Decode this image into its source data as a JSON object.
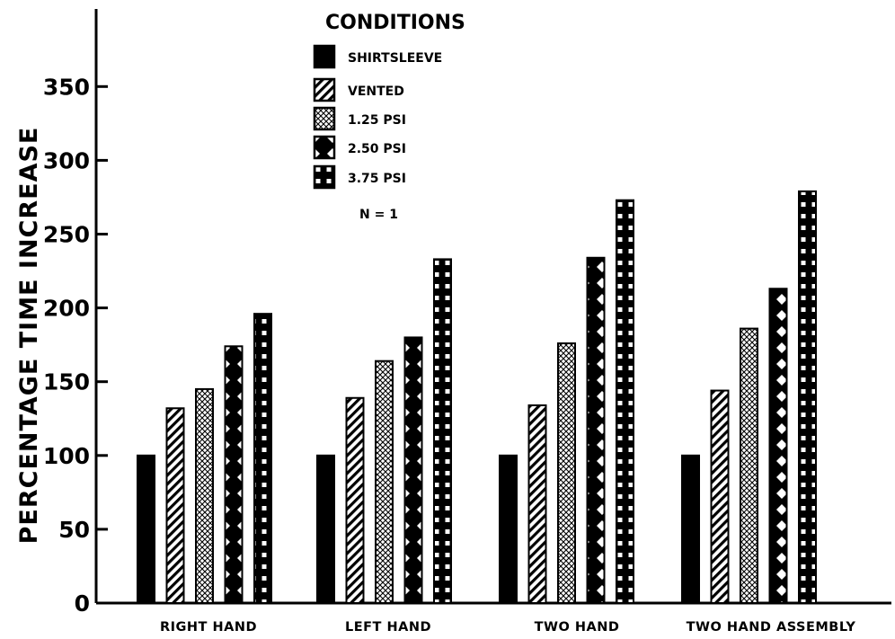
{
  "chart_data": {
    "type": "bar",
    "title": "",
    "xlabel": "",
    "ylabel": "PERCENTAGE TIME INCREASE",
    "ylim": [
      0,
      400
    ],
    "yticks": [
      0,
      50,
      100,
      150,
      200,
      250,
      300,
      350
    ],
    "ytick_labels": [
      "0",
      "50",
      "100",
      "150",
      "200",
      "250",
      "300",
      "350"
    ],
    "categories": [
      "RIGHT HAND",
      "LEFT HAND",
      "TWO HAND",
      "TWO HAND ASSEMBLY"
    ],
    "legend": {
      "title": "CONDITIONS",
      "note": "N = 1",
      "placement": "top-center"
    },
    "series": [
      {
        "name": "SHIRTSLEEVE",
        "pattern": "solid",
        "values": [
          100,
          100,
          100,
          100
        ]
      },
      {
        "name": "VENTED",
        "pattern": "diagonal",
        "values": [
          132,
          139,
          134,
          144
        ]
      },
      {
        "name": "1.25 PSI",
        "pattern": "crosshatch",
        "values": [
          145,
          164,
          176,
          186
        ]
      },
      {
        "name": "2.50 PSI",
        "pattern": "diamond",
        "values": [
          174,
          180,
          234,
          213
        ]
      },
      {
        "name": "3.75 PSI",
        "pattern": "dots",
        "values": [
          196,
          233,
          273,
          279
        ]
      }
    ],
    "colors": {
      "ink": "#000000",
      "paper": "#ffffff"
    },
    "grid": false
  }
}
